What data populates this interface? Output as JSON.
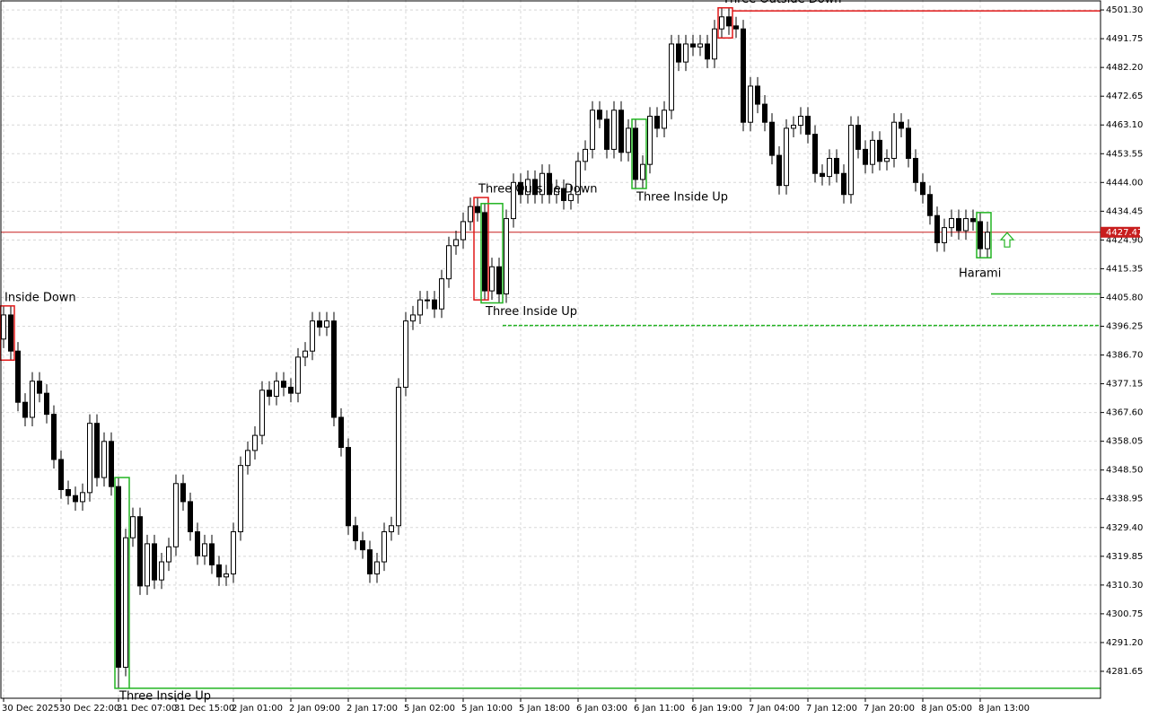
{
  "chart_data": {
    "type": "candlestick",
    "categories": [
      "30 Dec 2025",
      null,
      null,
      null,
      null,
      null,
      null,
      null,
      "30 Dec 22:00",
      null,
      null,
      null,
      null,
      null,
      null,
      null,
      "31 Dec 07:00",
      null,
      null,
      null,
      null,
      null,
      null,
      null,
      "31 Dec 15:00",
      null,
      null,
      null,
      null,
      null,
      null,
      null,
      "2 Jan 01:00",
      null,
      null,
      null,
      null,
      null,
      null,
      null,
      "2 Jan 09:00",
      null,
      null,
      null,
      null,
      null,
      null,
      null,
      "2 Jan 17:00",
      null,
      null,
      null,
      null,
      null,
      null,
      null,
      "5 Jan 02:00",
      null,
      null,
      null,
      null,
      null,
      null,
      null,
      "5 Jan 10:00",
      null,
      null,
      null,
      null,
      null,
      null,
      null,
      "5 Jan 18:00",
      null,
      null,
      null,
      null,
      null,
      null,
      null,
      "6 Jan 03:00",
      null,
      null,
      null,
      null,
      null,
      null,
      null,
      "6 Jan 11:00",
      null,
      null,
      null,
      null,
      null,
      null,
      null,
      "6 Jan 19:00",
      null,
      null,
      null,
      null,
      null,
      null,
      null,
      "7 Jan 04:00",
      null,
      null,
      null,
      null,
      null,
      null,
      null,
      "7 Jan 12:00",
      null,
      null,
      null,
      null,
      null,
      null,
      null,
      "7 Jan 20:00",
      null,
      null,
      null,
      null,
      null,
      null,
      null,
      "8 Jan 05:00",
      null,
      null,
      null,
      null,
      null,
      null,
      null,
      "8 Jan 13:00",
      null
    ],
    "open": [
      4392,
      4400,
      4388,
      4371,
      4366,
      4378,
      4374,
      4367,
      4352,
      4342,
      4340,
      4338,
      4341,
      4364,
      4346,
      4358,
      4343,
      4283,
      4326,
      4333,
      4310,
      4324,
      4312,
      4318,
      4323,
      4344,
      4338,
      4328,
      4320,
      4324,
      4317,
      4313,
      4314,
      4328,
      4350,
      4355,
      4360,
      4375,
      4373,
      4378,
      4376,
      4374,
      4386,
      4388,
      4398,
      4396,
      4398,
      4366,
      4356,
      4330,
      4325,
      4322,
      4314,
      4318,
      4328,
      4330,
      4376,
      4398,
      4400,
      4405,
      4405,
      4402,
      4412,
      4423,
      4425,
      4431,
      4436,
      4434,
      4408,
      4416,
      4407,
      4432,
      4444,
      4440,
      4445,
      4440,
      4447,
      4440,
      4442,
      4438,
      4440,
      4451,
      4455,
      4468,
      4465,
      4455,
      4468,
      4454,
      4462,
      4445,
      4450,
      4466,
      4462,
      4468,
      4490,
      4484,
      4490,
      4489,
      4490,
      4485,
      4495,
      4499,
      4496,
      4495,
      4464,
      4476,
      4470,
      4464,
      4453,
      4443,
      4462,
      4463,
      4466,
      4460,
      4447,
      4446,
      4452,
      4447,
      4440,
      4463,
      4455,
      4450,
      4458,
      4451,
      4452,
      4464,
      4462,
      4452,
      4444,
      4440,
      4433,
      4424,
      4429,
      4432,
      4428,
      4432,
      4431,
      4422
    ],
    "high": [
      4403,
      4403,
      4391,
      4374,
      4381,
      4381,
      4377,
      4370,
      4355,
      4345,
      4343,
      4344,
      4367,
      4367,
      4361,
      4361,
      4346,
      4329,
      4336,
      4336,
      4327,
      4327,
      4321,
      4326,
      4347,
      4347,
      4341,
      4331,
      4327,
      4327,
      4320,
      4317,
      4331,
      4353,
      4358,
      4363,
      4378,
      4378,
      4381,
      4381,
      4379,
      4389,
      4391,
      4401,
      4401,
      4401,
      4401,
      4369,
      4359,
      4333,
      4328,
      4325,
      4321,
      4331,
      4333,
      4379,
      4401,
      4403,
      4408,
      4408,
      4408,
      4415,
      4426,
      4428,
      4434,
      4439,
      4439,
      4437,
      4419,
      4419,
      4435,
      4447,
      4447,
      4448,
      4448,
      4450,
      4450,
      4445,
      4445,
      4443,
      4454,
      4458,
      4471,
      4471,
      4468,
      4471,
      4471,
      4465,
      4465,
      4453,
      4469,
      4469,
      4471,
      4493,
      4493,
      4493,
      4493,
      4493,
      4493,
      4498,
      4502,
      4502,
      4499,
      4498,
      4479,
      4479,
      4473,
      4467,
      4456,
      4465,
      4466,
      4469,
      4469,
      4463,
      4450,
      4455,
      4455,
      4450,
      4466,
      4466,
      4458,
      4461,
      4461,
      4455,
      4467,
      4467,
      4465,
      4455,
      4447,
      4443,
      4436,
      4432,
      4435,
      4435,
      4435,
      4435,
      4434,
      4431
    ],
    "low": [
      4389,
      4385,
      4368,
      4363,
      4363,
      4371,
      4364,
      4349,
      4339,
      4337,
      4335,
      4335,
      4338,
      4343,
      4343,
      4340,
      4276,
      4280,
      4323,
      4307,
      4307,
      4309,
      4309,
      4315,
      4320,
      4335,
      4325,
      4317,
      4317,
      4314,
      4310,
      4310,
      4311,
      4325,
      4347,
      4352,
      4357,
      4370,
      4370,
      4373,
      4371,
      4371,
      4383,
      4385,
      4393,
      4393,
      4363,
      4353,
      4327,
      4322,
      4319,
      4311,
      4311,
      4315,
      4325,
      4327,
      4373,
      4395,
      4397,
      4402,
      4399,
      4399,
      4409,
      4420,
      4422,
      4428,
      4431,
      4405,
      4405,
      4404,
      4404,
      4429,
      4437,
      4437,
      4437,
      4437,
      4437,
      4437,
      4435,
      4435,
      4437,
      4448,
      4452,
      4462,
      4452,
      4452,
      4451,
      4451,
      4442,
      4442,
      4447,
      4459,
      4459,
      4465,
      4481,
      4481,
      4486,
      4486,
      4482,
      4482,
      4492,
      4493,
      4492,
      4461,
      4461,
      4467,
      4461,
      4450,
      4440,
      4440,
      4459,
      4460,
      4457,
      4444,
      4443,
      4443,
      4444,
      4437,
      4437,
      4452,
      4447,
      4447,
      4448,
      4448,
      4449,
      4459,
      4449,
      4441,
      4437,
      4430,
      4421,
      4421,
      4426,
      4425,
      4425,
      4428,
      4419,
      4419
    ],
    "close": [
      4400,
      4388,
      4371,
      4366,
      4378,
      4374,
      4367,
      4352,
      4342,
      4340,
      4338,
      4341,
      4364,
      4346,
      4358,
      4343,
      4283,
      4326,
      4333,
      4310,
      4324,
      4312,
      4318,
      4323,
      4344,
      4338,
      4328,
      4320,
      4324,
      4317,
      4313,
      4314,
      4328,
      4350,
      4355,
      4360,
      4375,
      4373,
      4378,
      4376,
      4374,
      4386,
      4388,
      4398,
      4396,
      4398,
      4366,
      4356,
      4330,
      4325,
      4322,
      4314,
      4318,
      4328,
      4330,
      4376,
      4398,
      4400,
      4405,
      4405,
      4402,
      4412,
      4423,
      4425,
      4431,
      4436,
      4434,
      4408,
      4416,
      4407,
      4432,
      4444,
      4440,
      4445,
      4440,
      4447,
      4440,
      4442,
      4438,
      4440,
      4451,
      4455,
      4468,
      4465,
      4455,
      4468,
      4454,
      4462,
      4445,
      4450,
      4466,
      4462,
      4468,
      4490,
      4484,
      4490,
      4489,
      4490,
      4485,
      4495,
      4499,
      4496,
      4495,
      4464,
      4476,
      4470,
      4464,
      4453,
      4443,
      4462,
      4463,
      4466,
      4460,
      4447,
      4446,
      4452,
      4447,
      4440,
      4463,
      4455,
      4450,
      4458,
      4451,
      4452,
      4464,
      4462,
      4452,
      4444,
      4440,
      4433,
      4424,
      4429,
      4432,
      4428,
      4432,
      4431,
      4422,
      4427.47
    ],
    "up_color": "#ffffff",
    "down_color": "#000000",
    "ylim": [
      4272.7,
      4504.6
    ],
    "yticks": [
      {
        "value": 4501.3,
        "label": "4501.30"
      },
      4491.75,
      {
        "value": 4482.2,
        "label": "4482.20"
      },
      4472.65,
      {
        "value": 4463.1,
        "label": "4463.10"
      },
      4453.55,
      {
        "value": 4444,
        "label": "4444.00"
      },
      4434.45,
      {
        "value": 4424.9,
        "label": "4424.90"
      },
      4415.35,
      {
        "value": 4405.8,
        "label": "4405.80"
      },
      4396.25,
      {
        "value": 4386.7,
        "label": "4386.70"
      },
      4377.15,
      {
        "value": 4367.6,
        "label": "4367.60"
      },
      4358.05,
      {
        "value": 4348.5,
        "label": "4348.50"
      },
      4338.95,
      {
        "value": 4329.4,
        "label": "4329.40"
      },
      4319.85,
      {
        "value": 4310.3,
        "label": "4310.30"
      },
      4300.75,
      {
        "value": 4291.2,
        "label": "4291.20"
      },
      4281.65
    ],
    "grid": true,
    "last_price": 4427.47,
    "last_price_color": "#c81e1e",
    "patterns": [
      {
        "name": "Inside Down",
        "color": "#e01818",
        "start": 0,
        "end": 1
      },
      {
        "name": "Three Inside Up",
        "color": "#22b422",
        "start": 16,
        "end": 17,
        "level": 4276
      },
      {
        "name": "Three Outside Down",
        "color": "#e01818",
        "start": 66,
        "end": 67
      },
      {
        "name": "Three Inside Up",
        "color": "#22b422",
        "start": 67,
        "end": 69,
        "level": 4396.5
      },
      {
        "name": "Three Inside Up",
        "color": "#22b422",
        "start": 88,
        "end": 89
      },
      {
        "name": "Three Outside Down",
        "color": "#e01818",
        "start": 100,
        "end": 101,
        "level": 4501
      },
      {
        "name": "Harami",
        "color": "#22b422",
        "start": 136,
        "end": 137,
        "level": 4407,
        "arrow": "up"
      }
    ]
  }
}
